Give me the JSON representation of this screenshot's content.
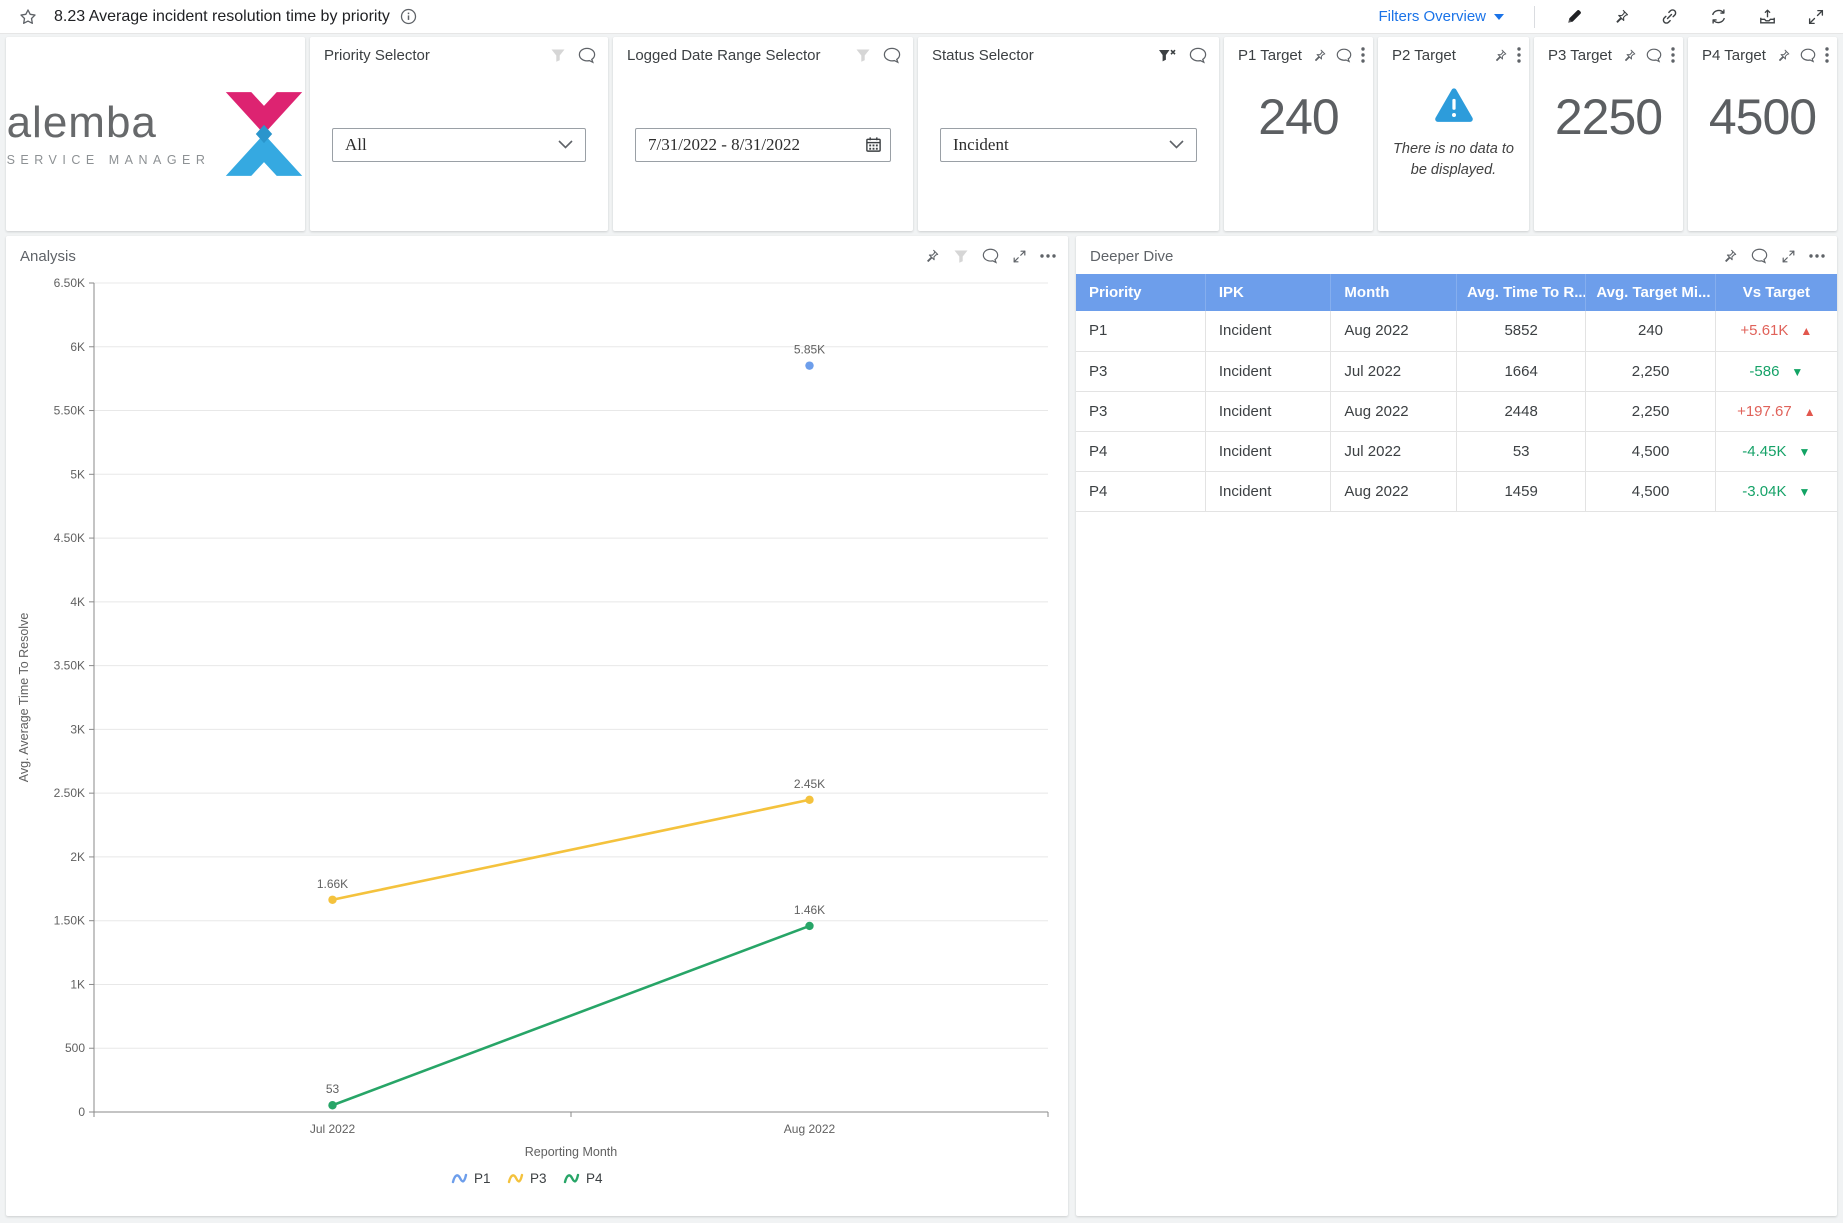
{
  "topbar": {
    "title": "8.23 Average incident resolution time by priority",
    "filters_overview_label": "Filters Overview"
  },
  "logo": {
    "brand": "alemba",
    "tagline": "SERVICE MANAGER"
  },
  "selectors": {
    "priority": {
      "title": "Priority Selector",
      "value": "All"
    },
    "date_range": {
      "title": "Logged Date Range Selector",
      "value": "7/31/2022 - 8/31/2022"
    },
    "status": {
      "title": "Status Selector",
      "value": "Incident"
    }
  },
  "kpis": {
    "p1": {
      "title": "P1 Target",
      "value": "240"
    },
    "p2": {
      "title": "P2 Target",
      "no_data_message": "There is no data to be displayed."
    },
    "p3": {
      "title": "P3 Target",
      "value": "2250"
    },
    "p4": {
      "title": "P4 Target",
      "value": "4500"
    }
  },
  "analysis": {
    "title": "Analysis"
  },
  "chart_data": {
    "type": "line",
    "title": "Analysis",
    "x_categories": [
      "Jul 2022",
      "Aug 2022"
    ],
    "xlabel": "Reporting Month",
    "ylabel": "Avg. Average Time To Resolve",
    "ylim": [
      0,
      6500
    ],
    "ytick_step": 500,
    "ytick_labels": [
      "0",
      "500",
      "1K",
      "1.50K",
      "2K",
      "2.50K",
      "3K",
      "3.50K",
      "4K",
      "4.50K",
      "5K",
      "5.50K",
      "6K",
      "6.50K"
    ],
    "grid": true,
    "legend_position": "bottom",
    "series": [
      {
        "name": "P1",
        "color": "#6d9eeb",
        "values": [
          null,
          5852
        ],
        "point_labels": [
          "",
          "5.85K"
        ]
      },
      {
        "name": "P3",
        "color": "#f4c23d",
        "values": [
          1664,
          2448
        ],
        "point_labels": [
          "1.66K",
          "2.45K"
        ]
      },
      {
        "name": "P4",
        "color": "#27a567",
        "values": [
          53,
          1459
        ],
        "point_labels": [
          "53",
          "1.46K"
        ]
      }
    ]
  },
  "deeper_dive": {
    "title": "Deeper Dive",
    "columns": [
      "Priority",
      "IPK",
      "Month",
      "Avg. Time To R...",
      "Avg. Target Mi...",
      "Vs Target"
    ],
    "rows": [
      {
        "priority": "P1",
        "ipk": "Incident",
        "month": "Aug 2022",
        "avg_time": "5852",
        "avg_target": "240",
        "vs_target": {
          "text": "+5.61K",
          "direction": "up",
          "tone": "bad"
        }
      },
      {
        "priority": "P3",
        "ipk": "Incident",
        "month": "Jul 2022",
        "avg_time": "1664",
        "avg_target": "2,250",
        "vs_target": {
          "text": "-586",
          "direction": "down",
          "tone": "good"
        }
      },
      {
        "priority": "P3",
        "ipk": "Incident",
        "month": "Aug 2022",
        "avg_time": "2448",
        "avg_target": "2,250",
        "vs_target": {
          "text": "+197.67",
          "direction": "up",
          "tone": "bad"
        }
      },
      {
        "priority": "P4",
        "ipk": "Incident",
        "month": "Jul 2022",
        "avg_time": "53",
        "avg_target": "4,500",
        "vs_target": {
          "text": "-4.45K",
          "direction": "down",
          "tone": "good"
        }
      },
      {
        "priority": "P4",
        "ipk": "Incident",
        "month": "Aug 2022",
        "avg_time": "1459",
        "avg_target": "4,500",
        "vs_target": {
          "text": "-3.04K",
          "direction": "down",
          "tone": "good"
        }
      }
    ]
  },
  "colors": {
    "accent_blue": "#1a73e8",
    "table_header_blue": "#6d9eeb",
    "positive_green": "#16a268",
    "negative_red": "#e0625a",
    "warning_blue": "#2d9cdb",
    "brand_pink": "#dd2371",
    "brand_blue": "#35a9e1",
    "series_p1": "#6d9eeb",
    "series_p3": "#f4c23d",
    "series_p4": "#27a567"
  },
  "icons": {
    "favorite": "star-outline",
    "info": "info-circle",
    "filter": "funnel",
    "filter_clear": "funnel-x",
    "comment": "speech-bubble",
    "pin": "thumbtack",
    "menu": "kebab-vertical",
    "more": "ellipsis-horizontal",
    "expand": "diagonal-arrows",
    "edit": "pen",
    "link": "chain-link",
    "refresh": "sync-arrows",
    "export": "tray-arrow-up",
    "calendar": "calendar-grid",
    "dropdown": "chevron-down",
    "trend_up": "triangle-up",
    "trend_down": "triangle-down",
    "legend_marker": "squiggle-line"
  }
}
